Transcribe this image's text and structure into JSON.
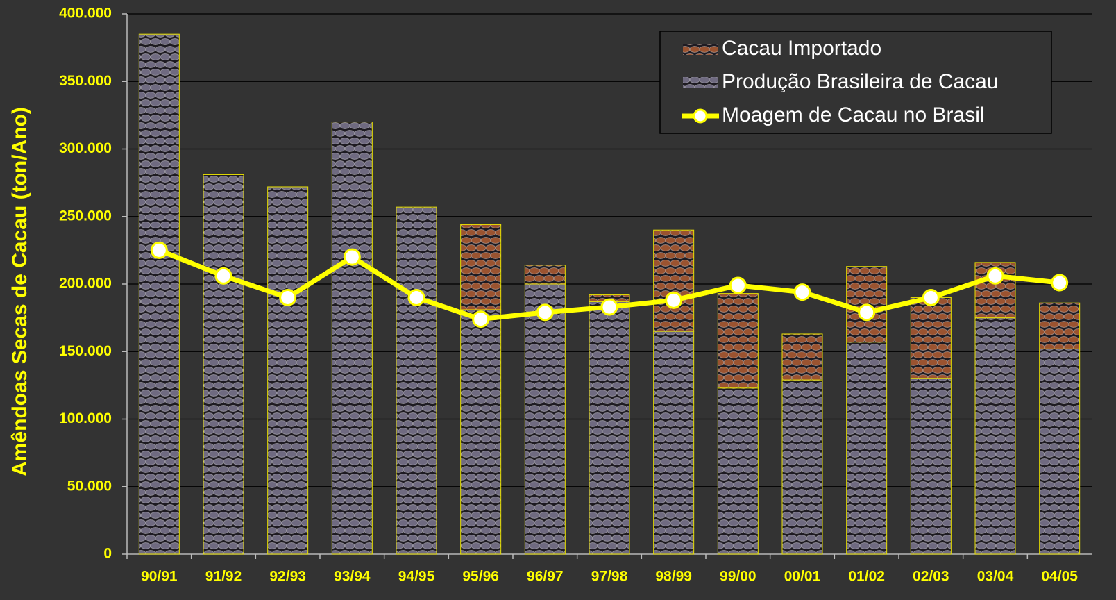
{
  "chart_data": {
    "type": "stacked-bar-line",
    "y_label": "Amêndoas Secas de Cacau (ton/Ano)",
    "categories": [
      "90/91",
      "91/92",
      "92/93",
      "93/94",
      "94/95",
      "95/96",
      "96/97",
      "97/98",
      "98/99",
      "99/00",
      "00/01",
      "01/02",
      "02/03",
      "03/04",
      "04/05"
    ],
    "series": [
      {
        "name": "Produção Brasileira de Cacau",
        "color": "#6f6a80",
        "kind": "bar",
        "values": [
          385000,
          281000,
          272000,
          320000,
          257000,
          181000,
          200000,
          187000,
          165000,
          123000,
          129000,
          157000,
          130000,
          175000,
          152000
        ]
      },
      {
        "name": "Cacau Importado",
        "color": "#9a5330",
        "kind": "bar",
        "values": [
          0,
          0,
          0,
          0,
          0,
          63000,
          14000,
          5000,
          75000,
          70000,
          34000,
          56000,
          60000,
          41000,
          34000
        ]
      },
      {
        "name": "Moagem de Cacau no Brasil",
        "color": "#ffff00",
        "kind": "line",
        "values": [
          225000,
          206000,
          190000,
          220000,
          190000,
          174000,
          179000,
          183000,
          188000,
          199000,
          194000,
          179000,
          190000,
          206000,
          201000
        ]
      }
    ],
    "legend_order": [
      1,
      0,
      2
    ],
    "ylim": [
      0,
      400000
    ],
    "yticks": [
      0,
      {
        "value": 50000,
        "label": "50.000"
      },
      {
        "value": 100000,
        "label": "100.000"
      },
      {
        "value": 150000,
        "label": "150.000"
      },
      {
        "value": 200000,
        "label": "200.000"
      },
      {
        "value": 250000,
        "label": "250.000"
      },
      {
        "value": 300000,
        "label": "300.000"
      },
      {
        "value": 350000,
        "label": "350.000"
      },
      {
        "value": 400000,
        "label": "400.000"
      }
    ],
    "grid": true
  }
}
